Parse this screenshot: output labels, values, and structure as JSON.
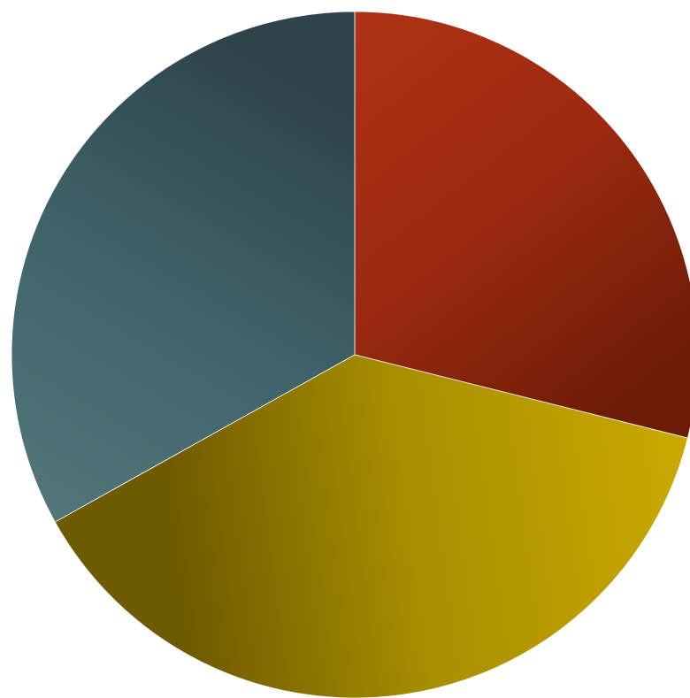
{
  "chart_data": {
    "type": "pie",
    "title": "",
    "start_angle_deg": 0,
    "direction": "clockwise",
    "slices": [
      {
        "value": 28.9,
        "color": "#9c2a10",
        "color_light": "#b53417",
        "color_dark": "#6d1c08"
      },
      {
        "value": 38.0,
        "color": "#a88e00",
        "color_light": "#cdac00",
        "color_dark": "#6e5a00"
      },
      {
        "value": 33.1,
        "color": "#3e6268",
        "color_light": "#56797e",
        "color_dark": "#2e4449"
      }
    ]
  }
}
